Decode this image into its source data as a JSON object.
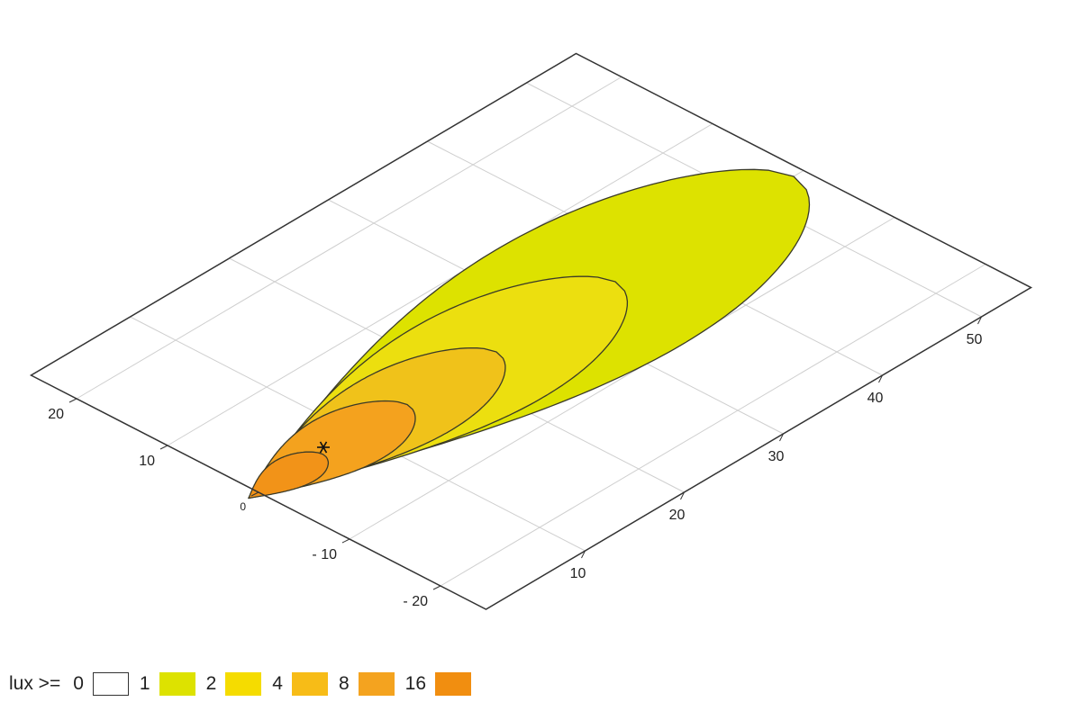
{
  "chart_data": {
    "type": "contour",
    "projection": "isometric ground plane",
    "axes": {
      "lateral": {
        "ticks": [
          "20",
          "10",
          "0",
          "- 10",
          "- 20"
        ],
        "range": [
          -25,
          25
        ]
      },
      "distance": {
        "ticks": [
          "10",
          "20",
          "30",
          "40",
          "50"
        ],
        "range": [
          0,
          55
        ]
      }
    },
    "grid": true,
    "source_marker": {
      "symbol": "*",
      "lateral": 0,
      "distance": 0
    },
    "contours": [
      {
        "threshold": 1,
        "color": "#dde200",
        "lateral_halfwidth": 10.5,
        "distance_range": [
          -1,
          54
        ]
      },
      {
        "threshold": 2,
        "color": "#ecdf0f",
        "lateral_halfwidth": 7.5,
        "distance_range": [
          -1,
          36
        ]
      },
      {
        "threshold": 4,
        "color": "#f0c21a",
        "lateral_halfwidth": 5.3,
        "distance_range": [
          -1,
          24
        ]
      },
      {
        "threshold": 8,
        "color": "#f4a21e",
        "lateral_halfwidth": 4.0,
        "distance_range": [
          -1,
          15
        ]
      },
      {
        "threshold": 16,
        "color": "#f29318",
        "lateral_halfwidth": 2.2,
        "distance_range": [
          -1,
          6.5
        ]
      }
    ],
    "legend": {
      "title": "lux >=",
      "items": [
        {
          "label": "0",
          "color": "#ffffff"
        },
        {
          "label": "1",
          "color": "#dde200"
        },
        {
          "label": "2",
          "color": "#f5dc00"
        },
        {
          "label": "4",
          "color": "#f7bc17"
        },
        {
          "label": "8",
          "color": "#f4a31f"
        },
        {
          "label": "16",
          "color": "#f18e10"
        }
      ]
    }
  }
}
